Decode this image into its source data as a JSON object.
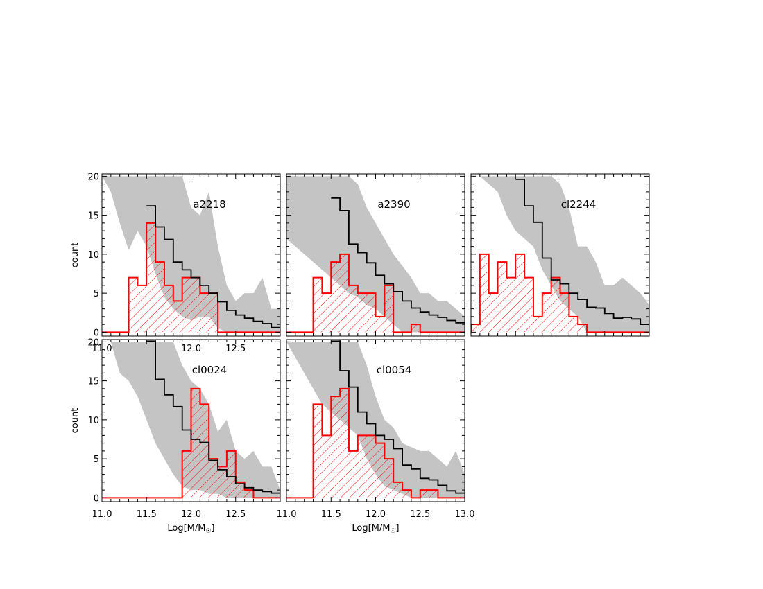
{
  "chart_data": [
    {
      "type": "bar",
      "panel_label": "a2218",
      "xlabel": "",
      "ylabel": "count",
      "xlim": [
        11.0,
        13.0
      ],
      "ylim": [
        0,
        20
      ],
      "x_ticks": [
        "11.0",
        "11.5",
        "12.0",
        "12.5"
      ],
      "y_ticks": [
        "0",
        "5",
        "10",
        "15",
        "20"
      ],
      "series": [
        {
          "kind": "band",
          "color": "#c4c4c4",
          "x": [
            11.0,
            11.1,
            11.2,
            11.3,
            11.4,
            11.5,
            11.6,
            11.7,
            11.8,
            11.9,
            12.0,
            12.1,
            12.2,
            12.3,
            12.4,
            12.5,
            12.6,
            12.7,
            12.8,
            12.9,
            13.0
          ],
          "upper": [
            20,
            20,
            20,
            20,
            20,
            20,
            20,
            20,
            20,
            20,
            16,
            15,
            18,
            11,
            6,
            4,
            5,
            5,
            7,
            3,
            3
          ],
          "lower": [
            20,
            18,
            14,
            10.5,
            13,
            11,
            7.5,
            4.5,
            3,
            2,
            1.5,
            2,
            2,
            0.5,
            0,
            0,
            0,
            0,
            0,
            0,
            0
          ]
        },
        {
          "kind": "step",
          "color": "#000000",
          "edges": [
            11.5,
            11.6,
            11.7,
            11.8,
            11.9,
            12.0,
            12.1,
            12.2,
            12.3,
            12.4,
            12.5,
            12.6,
            12.7,
            12.8,
            12.9,
            13.0
          ],
          "values": [
            16.2,
            13.5,
            11.9,
            9.0,
            8.0,
            7.0,
            6.0,
            5.0,
            3.9,
            2.8,
            2.2,
            1.8,
            1.4,
            1.1,
            0.6
          ]
        },
        {
          "kind": "hist",
          "color": "#ff0000",
          "edges": [
            11.3,
            11.4,
            11.5,
            11.6,
            11.7,
            11.8,
            11.9,
            12.0,
            12.1,
            12.2,
            12.3
          ],
          "values": [
            7,
            6,
            14,
            9,
            6,
            4,
            7,
            7,
            5,
            5
          ]
        }
      ]
    },
    {
      "type": "bar",
      "panel_label": "a2390",
      "xlabel": "",
      "ylabel": "",
      "xlim": [
        11.0,
        13.0
      ],
      "ylim": [
        0,
        20
      ],
      "x_ticks": [],
      "y_ticks": [],
      "series": [
        {
          "kind": "band",
          "color": "#c4c4c4",
          "x": [
            11.0,
            11.1,
            11.2,
            11.3,
            11.4,
            11.5,
            11.6,
            11.7,
            11.8,
            11.9,
            12.0,
            12.1,
            12.2,
            12.3,
            12.4,
            12.5,
            12.6,
            12.7,
            12.8,
            12.9,
            13.0
          ],
          "upper": [
            20,
            20,
            20,
            20,
            20,
            20,
            20,
            20,
            19,
            16,
            14,
            12,
            10,
            8.5,
            7,
            5,
            5,
            4,
            4,
            3,
            2
          ],
          "lower": [
            12,
            11,
            10,
            9,
            8,
            7,
            6,
            5,
            4.5,
            3.5,
            3,
            2,
            1,
            0,
            0,
            0,
            0,
            0,
            0,
            0,
            0
          ]
        },
        {
          "kind": "step",
          "color": "#000000",
          "edges": [
            11.5,
            11.6,
            11.7,
            11.8,
            11.9,
            12.0,
            12.1,
            12.2,
            12.3,
            12.4,
            12.5,
            12.6,
            12.7,
            12.8,
            12.9,
            13.0
          ],
          "values": [
            17.2,
            15.6,
            11.3,
            10.2,
            8.9,
            7.3,
            6.2,
            5.2,
            4.0,
            3.1,
            2.6,
            2.2,
            1.9,
            1.5,
            1.2
          ]
        },
        {
          "kind": "hist",
          "color": "#ff0000",
          "edges": [
            11.3,
            11.4,
            11.5,
            11.6,
            11.7,
            11.8,
            11.9,
            12.0,
            12.1,
            12.2,
            12.3,
            12.4,
            12.5,
            12.6
          ],
          "values": [
            7,
            5,
            9,
            10,
            6,
            5,
            5,
            2,
            6,
            0,
            0,
            1,
            0
          ]
        }
      ]
    },
    {
      "type": "bar",
      "panel_label": "cl2244",
      "xlabel": "",
      "ylabel": "",
      "xlim": [
        11.0,
        13.0
      ],
      "ylim": [
        0,
        20
      ],
      "x_ticks": [],
      "y_ticks": [],
      "series": [
        {
          "kind": "band",
          "color": "#c4c4c4",
          "x": [
            11.0,
            11.1,
            11.2,
            11.3,
            11.4,
            11.5,
            11.6,
            11.7,
            11.8,
            11.9,
            12.0,
            12.1,
            12.2,
            12.3,
            12.4,
            12.5,
            12.6,
            12.7,
            12.8,
            12.9,
            13.0
          ],
          "upper": [
            20,
            20,
            20,
            20,
            20,
            20,
            20,
            20,
            20,
            20,
            19,
            16,
            11,
            11,
            9,
            6,
            6,
            7,
            6,
            5,
            3.5
          ],
          "lower": [
            20,
            20,
            19,
            18,
            15,
            13,
            12,
            11,
            8,
            6,
            4,
            3,
            2,
            0,
            0,
            0,
            0,
            0,
            0,
            0,
            0
          ]
        },
        {
          "kind": "step",
          "color": "#000000",
          "edges": [
            11.5,
            11.6,
            11.7,
            11.8,
            11.9,
            12.0,
            12.1,
            12.2,
            12.3,
            12.4,
            12.5,
            12.6,
            12.7,
            12.8,
            12.9,
            13.0
          ],
          "values": [
            19.6,
            16.2,
            14.1,
            9.5,
            6.7,
            6.2,
            5.0,
            4.2,
            3.2,
            3.1,
            2.4,
            1.8,
            1.9,
            1.7,
            1.0
          ]
        },
        {
          "kind": "hist",
          "color": "#ff0000",
          "edges": [
            11.0,
            11.1,
            11.2,
            11.3,
            11.4,
            11.5,
            11.6,
            11.7,
            11.8,
            11.9,
            12.0,
            12.1,
            12.2,
            12.3,
            12.4,
            12.5,
            12.6,
            12.7
          ],
          "values": [
            1,
            10,
            5,
            9,
            7,
            10,
            7,
            2,
            5,
            7,
            5,
            2,
            1,
            0,
            0,
            0,
            0
          ]
        }
      ]
    },
    {
      "type": "bar",
      "panel_label": "cl0024",
      "xlabel": "Log[M/M☉]",
      "ylabel": "count",
      "xlim": [
        11.0,
        13.0
      ],
      "ylim": [
        0,
        20
      ],
      "x_ticks": [
        "11.0",
        "11.5",
        "12.0",
        "12.5"
      ],
      "y_ticks": [
        "0",
        "5",
        "10",
        "15",
        "20"
      ],
      "series": [
        {
          "kind": "band",
          "color": "#c4c4c4",
          "x": [
            11.0,
            11.1,
            11.2,
            11.3,
            11.4,
            11.5,
            11.6,
            11.7,
            11.8,
            11.9,
            12.0,
            12.1,
            12.2,
            12.3,
            12.4,
            12.5,
            12.6,
            12.7,
            12.8,
            12.9,
            13.0
          ],
          "upper": [
            20,
            20,
            20,
            20,
            20,
            20,
            20,
            20,
            20,
            17,
            15,
            14,
            12,
            8.5,
            10,
            6,
            5,
            6,
            4,
            4,
            1
          ],
          "lower": [
            20,
            20,
            16,
            15,
            13,
            10,
            7,
            5,
            3,
            1.5,
            1,
            1,
            0.5,
            0.5,
            0,
            0,
            0,
            0,
            0,
            0,
            0
          ]
        },
        {
          "kind": "step",
          "color": "#000000",
          "edges": [
            11.5,
            11.6,
            11.7,
            11.8,
            11.9,
            12.0,
            12.1,
            12.2,
            12.3,
            12.4,
            12.5,
            12.6,
            12.7,
            12.8,
            12.9,
            13.0
          ],
          "values": [
            20.1,
            15.2,
            13.2,
            11.7,
            8.7,
            7.5,
            7.1,
            4.8,
            3.6,
            2.7,
            1.8,
            1.3,
            1.0,
            0.8,
            0.6
          ]
        },
        {
          "kind": "hist",
          "color": "#ff0000",
          "edges": [
            11.9,
            12.0,
            12.1,
            12.2,
            12.3,
            12.4,
            12.5,
            12.6,
            12.7
          ],
          "values": [
            6,
            14,
            12,
            5,
            4,
            6,
            2,
            1
          ]
        }
      ]
    },
    {
      "type": "bar",
      "panel_label": "cl0054",
      "xlabel": "Log[M/M☉]",
      "ylabel": "",
      "xlim": [
        11.0,
        13.0
      ],
      "ylim": [
        0,
        20
      ],
      "x_ticks": [
        "11.0",
        "11.5",
        "12.0",
        "12.5",
        "13.0"
      ],
      "y_ticks": [],
      "series": [
        {
          "kind": "band",
          "color": "#c4c4c4",
          "x": [
            11.0,
            11.1,
            11.2,
            11.3,
            11.4,
            11.5,
            11.6,
            11.7,
            11.8,
            11.9,
            12.0,
            12.1,
            12.2,
            12.3,
            12.4,
            12.5,
            12.6,
            12.7,
            12.8,
            12.9,
            13.0
          ],
          "upper": [
            20,
            20,
            20,
            20,
            20,
            20,
            20,
            20,
            20,
            17,
            13,
            10,
            9,
            7,
            6.5,
            6,
            6,
            5,
            4,
            6,
            3
          ],
          "lower": [
            20,
            18,
            16,
            14,
            12,
            11,
            10,
            9,
            8,
            5,
            3,
            1.5,
            1,
            0.5,
            0,
            0,
            0,
            0,
            0,
            0,
            0
          ]
        },
        {
          "kind": "step",
          "color": "#000000",
          "edges": [
            11.5,
            11.6,
            11.7,
            11.8,
            11.9,
            12.0,
            12.1,
            12.2,
            12.3,
            12.4,
            12.5,
            12.6,
            12.7,
            12.8,
            12.9,
            13.0
          ],
          "values": [
            20.1,
            16.3,
            14.2,
            11.0,
            9.5,
            8.0,
            7.5,
            6.3,
            4.2,
            3.7,
            2.5,
            2.3,
            1.6,
            0.9,
            0.6
          ]
        },
        {
          "kind": "hist",
          "color": "#ff0000",
          "edges": [
            11.3,
            11.4,
            11.5,
            11.6,
            11.7,
            11.8,
            11.9,
            12.0,
            12.1,
            12.2,
            12.3,
            12.4,
            12.5,
            12.6,
            12.7
          ],
          "values": [
            12,
            8,
            13,
            14,
            6,
            8,
            8,
            7,
            5,
            2,
            1,
            0,
            1,
            1
          ]
        }
      ]
    }
  ]
}
